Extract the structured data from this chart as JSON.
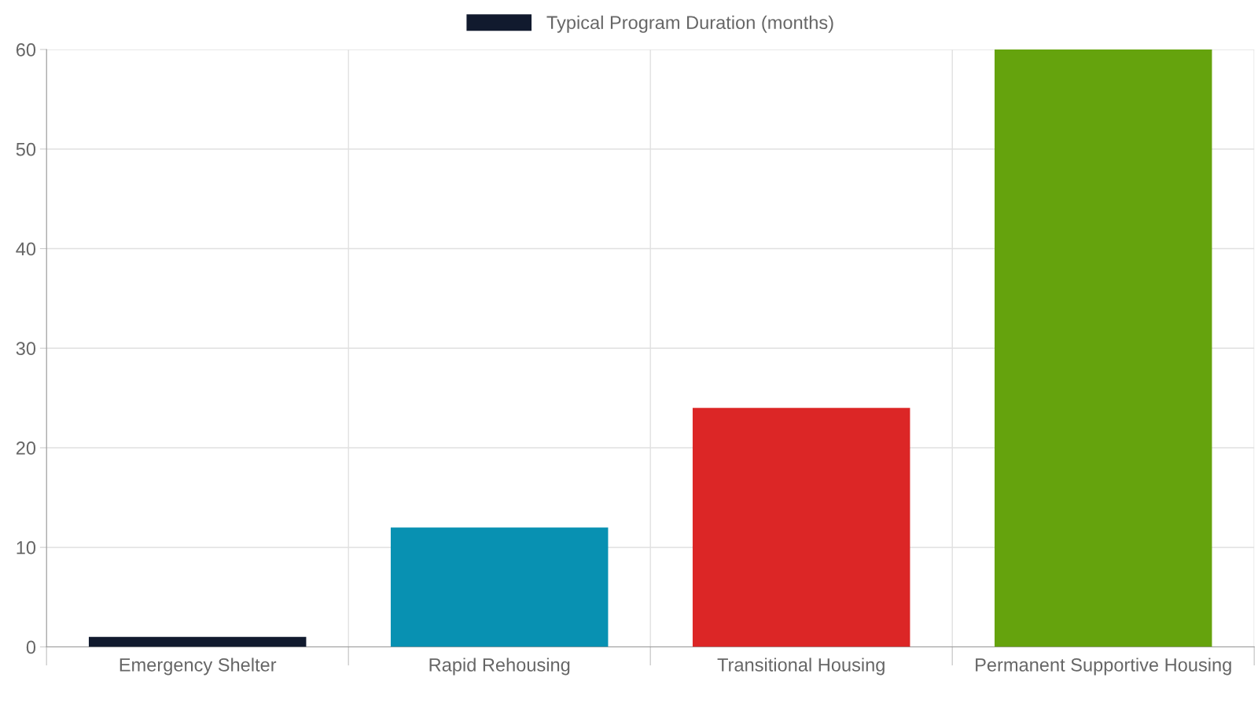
{
  "chart_data": {
    "type": "bar",
    "categories": [
      "Emergency Shelter",
      "Rapid Rehousing",
      "Transitional Housing",
      "Permanent Supportive Housing"
    ],
    "series": [
      {
        "name": "Typical Program Duration (months)",
        "color": "#111a2e",
        "colors": [
          "#111a2e",
          "#0891b2",
          "#dc2626",
          "#65a30d"
        ],
        "values": [
          1,
          12,
          24,
          60
        ]
      }
    ],
    "ylim": [
      0,
      60
    ],
    "yticks": [
      0,
      10,
      20,
      30,
      40,
      50,
      60
    ],
    "grid": true,
    "legend": "top"
  }
}
